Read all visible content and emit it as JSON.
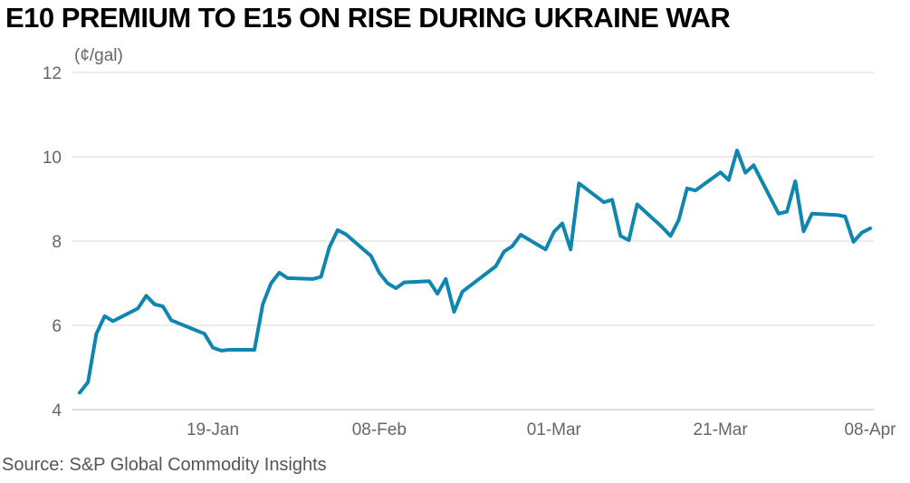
{
  "title": "E10 PREMIUM TO E15 ON RISE DURING UKRAINE WAR",
  "source": "Source: S&P Global Commodity Insights",
  "colors": {
    "line": "#0f86b0",
    "grid": "#d9d9d9",
    "tick_text": "#666666"
  },
  "chart_data": {
    "type": "line",
    "title": "E10 PREMIUM TO E15 ON RISE DURING UKRAINE WAR",
    "ylabel": "(¢/gal)",
    "xlabel": "",
    "ylim": [
      4,
      12
    ],
    "yticks": [
      "12",
      "10",
      "8",
      "6",
      "4"
    ],
    "xticks": [
      "19-Jan",
      "08-Feb",
      "01-Mar",
      "21-Mar",
      "08-Apr"
    ],
    "grid": true,
    "series": [
      {
        "x": [
          "2022-01-03",
          "2022-01-04",
          "2022-01-05",
          "2022-01-06",
          "2022-01-07",
          "2022-01-10",
          "2022-01-11",
          "2022-01-12",
          "2022-01-13",
          "2022-01-14",
          "2022-01-18",
          "2022-01-19",
          "2022-01-20",
          "2022-01-21",
          "2022-01-24",
          "2022-01-25",
          "2022-01-26",
          "2022-01-27",
          "2022-01-28",
          "2022-01-31",
          "2022-02-01",
          "2022-02-02",
          "2022-02-03",
          "2022-02-04",
          "2022-02-07",
          "2022-02-08",
          "2022-02-09",
          "2022-02-10",
          "2022-02-11",
          "2022-02-14",
          "2022-02-15",
          "2022-02-16",
          "2022-02-17",
          "2022-02-18",
          "2022-02-22",
          "2022-02-23",
          "2022-02-24",
          "2022-02-25",
          "2022-02-28",
          "2022-03-01",
          "2022-03-02",
          "2022-03-03",
          "2022-03-04",
          "2022-03-07",
          "2022-03-08",
          "2022-03-09",
          "2022-03-10",
          "2022-03-11",
          "2022-03-14",
          "2022-03-15",
          "2022-03-16",
          "2022-03-17",
          "2022-03-18",
          "2022-03-21",
          "2022-03-22",
          "2022-03-23",
          "2022-03-24",
          "2022-03-25",
          "2022-03-28",
          "2022-03-29",
          "2022-03-30",
          "2022-03-31",
          "2022-04-01",
          "2022-04-04",
          "2022-04-05",
          "2022-04-06",
          "2022-04-07",
          "2022-04-08"
        ],
        "values": [
          4.4,
          4.65,
          5.8,
          6.22,
          6.1,
          6.4,
          6.7,
          6.5,
          6.45,
          6.12,
          5.8,
          5.47,
          5.4,
          5.42,
          5.42,
          6.5,
          7.0,
          7.25,
          7.12,
          7.1,
          7.15,
          7.85,
          8.26,
          8.16,
          7.65,
          7.25,
          7.0,
          6.88,
          7.02,
          7.05,
          6.75,
          7.1,
          6.32,
          6.8,
          7.4,
          7.75,
          7.88,
          8.15,
          7.8,
          8.22,
          8.42,
          7.8,
          9.37,
          8.92,
          8.98,
          8.12,
          8.02,
          8.87,
          8.33,
          8.12,
          8.5,
          9.25,
          9.2,
          9.63,
          9.45,
          10.15,
          9.62,
          9.8,
          8.65,
          8.7,
          9.42,
          8.23,
          8.65,
          8.62,
          8.58,
          7.98,
          8.2,
          8.3
        ]
      }
    ]
  }
}
